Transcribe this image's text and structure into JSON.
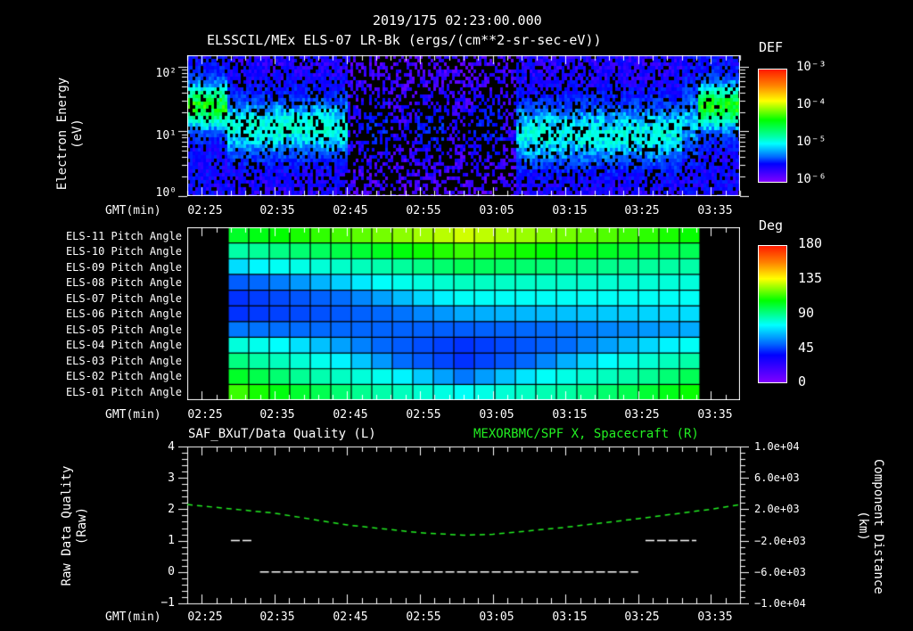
{
  "header": {
    "timestamp": "2019/175 02:23:00.000",
    "title": "ELSSCIL/MEx ELS-07 LR-Bk  (ergs/(cm**2-sr-sec-eV))"
  },
  "panel1": {
    "ylabel": "Electron Energy",
    "yunit": "(eV)",
    "yticks": [
      "10²",
      "10¹",
      "10⁰"
    ],
    "colorbar": {
      "title": "DEF",
      "labels": [
        "10⁻³",
        "10⁻⁴",
        "10⁻⁵",
        "10⁻⁶"
      ]
    },
    "xaxis_label": "GMT(min)"
  },
  "panel2": {
    "rows": [
      "ELS-11 Pitch Angle",
      "ELS-10 Pitch Angle",
      "ELS-09 Pitch Angle",
      "ELS-08 Pitch Angle",
      "ELS-07 Pitch Angle",
      "ELS-06 Pitch Angle",
      "ELS-05 Pitch Angle",
      "ELS-04 Pitch Angle",
      "ELS-03 Pitch Angle",
      "ELS-02 Pitch Angle",
      "ELS-01 Pitch Angle"
    ],
    "colorbar": {
      "title": "Deg",
      "labels": [
        "180",
        "135",
        "90",
        "45",
        "0"
      ]
    },
    "xaxis_label": "GMT(min)"
  },
  "panel3": {
    "title_left": "SAF_BXuT/Data Quality (L)",
    "title_right": "MEXORBMC/SPF X, Spacecraft (R)",
    "ylabel": "Raw Data Quality",
    "yunit": "(Raw)",
    "yticks_left": [
      "4",
      "3",
      "2",
      "1",
      "0",
      "−1"
    ],
    "ylabel_right": "Component Distance",
    "yunit_right": "(km)",
    "yticks_right": [
      "1.0e+04",
      "6.0e+03",
      "2.0e+03",
      "−2.0e+03",
      "−6.0e+03",
      "−1.0e+04"
    ],
    "xaxis_label": "GMT(min)"
  },
  "xticks": [
    "02:25",
    "02:35",
    "02:45",
    "02:55",
    "03:05",
    "03:15",
    "03:25",
    "03:35"
  ],
  "colors": {
    "background": "#000000",
    "axes": "#ffffff",
    "spacecraft_line": "#22ee22",
    "quality_line": "#ffffff"
  },
  "chart_data": [
    {
      "type": "heatmap",
      "title": "ELSSCIL/MEx ELS-07 LR-Bk (ergs/(cm**2-sr-sec-eV))",
      "xlabel": "GMT(min)",
      "ylabel": "Electron Energy (eV)",
      "yscale": "log",
      "ylim": [
        1,
        150
      ],
      "xlim": [
        "02:23",
        "03:39"
      ],
      "colorbar": {
        "label": "DEF",
        "scale": "log",
        "range": [
          1e-06,
          0.001
        ]
      },
      "notes": "Enhanced flux (~1e-4) at 10-40 eV in 02:23-02:28 and 03:31-03:39; moderate (~1e-5) band 3-30 eV 02:29-02:44 and 03:08-03:30; sparse low flux 02:45-03:07"
    },
    {
      "type": "heatmap",
      "title": "Pitch Angle",
      "xlabel": "GMT(min)",
      "categories": [
        "ELS-11",
        "ELS-10",
        "ELS-09",
        "ELS-08",
        "ELS-07",
        "ELS-06",
        "ELS-05",
        "ELS-04",
        "ELS-03",
        "ELS-02",
        "ELS-01"
      ],
      "xlim": [
        "02:23",
        "03:39"
      ],
      "data_range_time": [
        "02:28",
        "03:33"
      ],
      "colorbar": {
        "label": "Deg",
        "range": [
          0,
          180
        ],
        "ticks": [
          0,
          45,
          90,
          135,
          180
        ]
      },
      "approx_values_start": [
        100,
        85,
        65,
        50,
        40,
        40,
        55,
        75,
        90,
        100,
        110
      ],
      "approx_values_mid": [
        125,
        110,
        95,
        80,
        70,
        60,
        50,
        40,
        40,
        55,
        70
      ],
      "approx_values_end": [
        105,
        95,
        85,
        75,
        70,
        65,
        60,
        70,
        85,
        95,
        105
      ]
    },
    {
      "type": "line",
      "title_left": "SAF_BXuT/Data Quality (L)",
      "title_right": "MEXORBMC/SPF X, Spacecraft (R)",
      "xlabel": "GMT(min)",
      "ylabel": "Raw Data Quality (Raw)",
      "ylabel_right": "Component Distance (km)",
      "ylim": [
        -1,
        4
      ],
      "ylim_right": [
        -10000,
        10000
      ],
      "series": [
        {
          "name": "Data Quality",
          "axis": "left",
          "x": [
            "02:29",
            "02:32",
            "02:33",
            "03:25",
            "03:26",
            "03:33"
          ],
          "values": [
            1,
            1,
            0,
            0,
            1,
            1
          ]
        },
        {
          "name": "SPF X Spacecraft",
          "axis": "right",
          "x": [
            "02:23",
            "02:35",
            "02:45",
            "02:55",
            "03:01",
            "03:05",
            "03:15",
            "03:25",
            "03:35",
            "03:39"
          ],
          "values": [
            2600,
            1500,
            0,
            -1000,
            -1300,
            -1200,
            -300,
            800,
            2000,
            2600
          ]
        }
      ]
    }
  ]
}
